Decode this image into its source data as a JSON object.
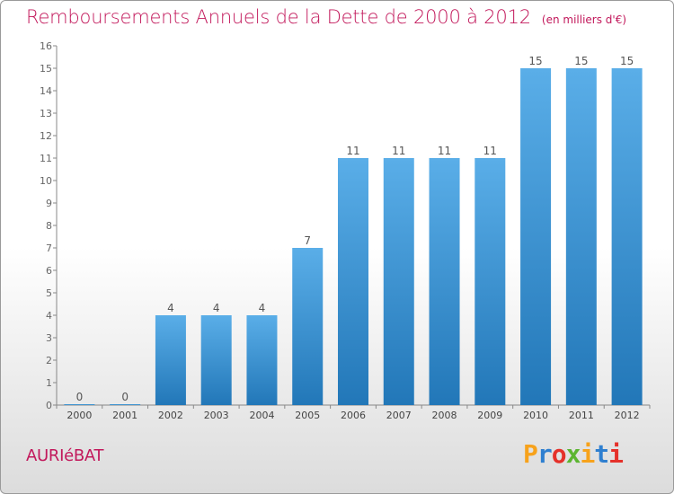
{
  "title": "Remboursements Annuels de la Dette de 2000 à 2012",
  "unit": "(en milliers d'€)",
  "commune": "AURIéBAT",
  "brand": {
    "letters": [
      "P",
      "r",
      "o",
      "x",
      "i",
      "t",
      "i"
    ],
    "colors": [
      "#f7a21b",
      "#2e7fd0",
      "#e5312a",
      "#5cb531",
      "#f7a21b",
      "#2e7fd0",
      "#e5312a"
    ]
  },
  "colors": {
    "title": "#c2185b",
    "bar_light": "#5aaee8",
    "bar_dark": "#2277b8",
    "axis": "#666666"
  },
  "chart_data": {
    "type": "bar",
    "categories": [
      "2000",
      "2001",
      "2002",
      "2003",
      "2004",
      "2005",
      "2006",
      "2007",
      "2008",
      "2009",
      "2010",
      "2011",
      "2012"
    ],
    "values": [
      0,
      0,
      4,
      4,
      4,
      7,
      11,
      11,
      11,
      11,
      15,
      15,
      15
    ],
    "ylim": [
      0,
      16
    ],
    "yticks": [
      0,
      1,
      2,
      3,
      4,
      5,
      6,
      7,
      8,
      9,
      10,
      11,
      12,
      13,
      14,
      15,
      16
    ],
    "data_labels": true,
    "grid": false
  }
}
